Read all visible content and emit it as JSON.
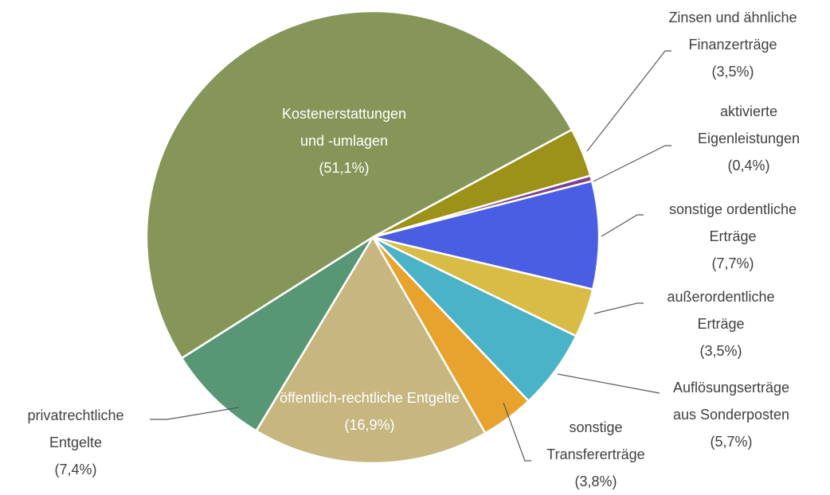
{
  "chart_data": {
    "type": "pie",
    "categories": [
      "Zinsen und ähnliche Finanzerträge",
      "aktivierte Eigenleistungen",
      "sonstige ordentliche Erträge",
      "außerordentliche Erträge",
      "Auflösungserträge aus Sonderposten",
      "sonstige Transfererträge",
      "öffentlich-rechtliche Entgelte",
      "privatrechtliche Entgelte",
      "Kostenerstattungen und -umlagen"
    ],
    "values": [
      3.5,
      0.4,
      7.7,
      3.5,
      5.7,
      3.8,
      16.9,
      7.4,
      51.1
    ],
    "value_labels": [
      "(3,5%)",
      "(0,4%)",
      "(7,7%)",
      "(3,5%)",
      "(5,7%)",
      "(3,8%)",
      "(16,9%)",
      "(7,4%)",
      "(51,1%)"
    ],
    "colors": [
      "#9c9119",
      "#7d3f8e",
      "#4a5ee3",
      "#d9bc46",
      "#4bb3c7",
      "#e8a32e",
      "#c7b680",
      "#579775",
      "#869659"
    ]
  }
}
